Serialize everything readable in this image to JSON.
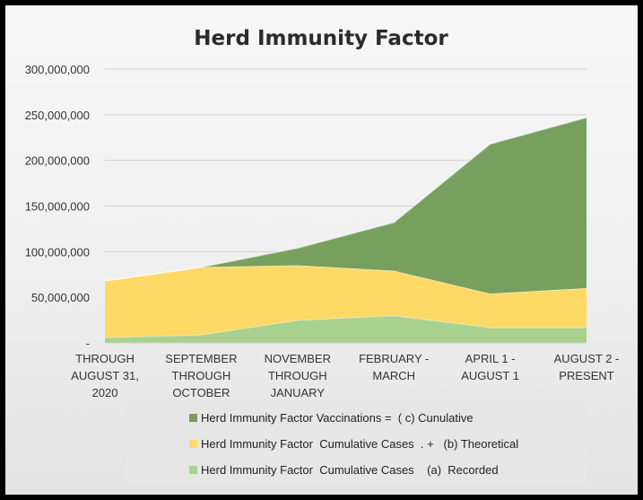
{
  "chart_data": {
    "type": "area",
    "stacked": true,
    "title": "Herd Immunity Factor",
    "categories": [
      [
        "THROUGH",
        "AUGUST 31,",
        "2020"
      ],
      [
        "SEPTEMBER",
        "THROUGH",
        "OCTOBER"
      ],
      [
        "NOVEMBER",
        "THROUGH",
        "JANUARY"
      ],
      [
        "FEBRUARY -",
        "MARCH"
      ],
      [
        "APRIL 1 -",
        "AUGUST 1"
      ],
      [
        "AUGUST 2 -",
        "PRESENT"
      ]
    ],
    "ylim": [
      0,
      300000000
    ],
    "yticks": [
      "-",
      "50,000,000",
      "100,000,000",
      "150,000,000",
      "200,000,000",
      "250,000,000",
      "300,000,000"
    ],
    "gridlines": true,
    "legend_position": "bottom",
    "series": [
      {
        "name": "Herd Immunity Factor  Cumulative Cases    (a)  Recorded",
        "color": "#a9d18e",
        "values": [
          6000000,
          9000000,
          25000000,
          30000000,
          17000000,
          17000000
        ]
      },
      {
        "name": "Herd Immunity Factor  Cumulative Cases  . +   (b) Theoretical",
        "color": "#ffd966",
        "values": [
          62000000,
          74000000,
          60000000,
          49000000,
          37000000,
          43000000
        ]
      },
      {
        "name": "Herd Immunity Factor Vaccinations =  ( c) Cunulative",
        "color": "#77a05f",
        "values": [
          0,
          0,
          19000000,
          53000000,
          164000000,
          187000000
        ]
      }
    ]
  }
}
